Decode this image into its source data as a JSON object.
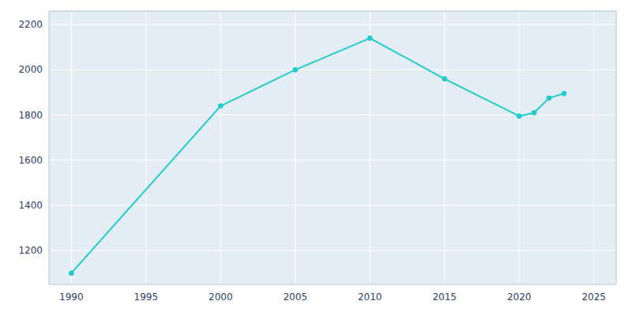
{
  "chart_data": {
    "type": "line",
    "x": [
      1990,
      2000,
      2005,
      2010,
      2015,
      2020,
      2021,
      2022,
      2023
    ],
    "values": [
      1100,
      1840,
      2000,
      2140,
      1960,
      1795,
      1810,
      1875,
      1895
    ],
    "color": "#22CCCC",
    "marker": "circle",
    "xlim": [
      1988.5,
      2026.5
    ],
    "ylim": [
      1050,
      2260
    ],
    "xticks": [
      1990,
      1995,
      2000,
      2005,
      2010,
      2015,
      2020,
      2025
    ],
    "yticks": [
      1200,
      1400,
      1600,
      1800,
      2000,
      2200
    ],
    "grid": true
  }
}
